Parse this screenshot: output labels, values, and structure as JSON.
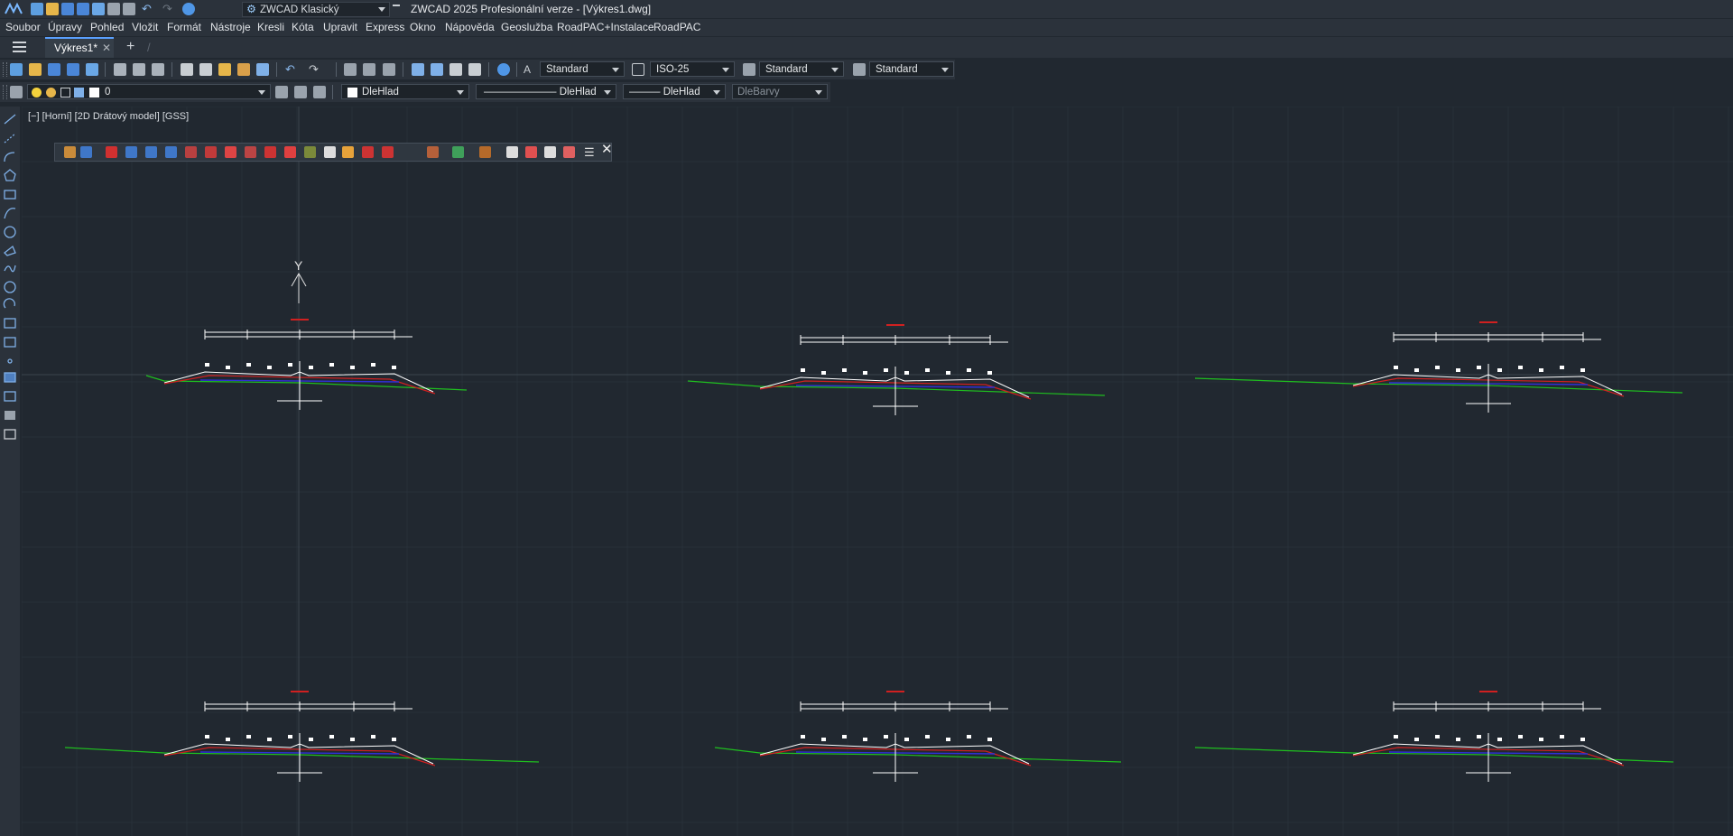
{
  "app": {
    "title": "ZWCAD 2025 Profesionální verze - [Výkres1.dwg]",
    "workspace": "ZWCAD Klasický",
    "gear_icon": "gear-icon"
  },
  "menu": [
    "Soubor",
    "Úpravy",
    "Pohled",
    "Vložit",
    "Formát",
    "Nástroje",
    "Kresli",
    "Kóta",
    "Upravit",
    "Express",
    "Okno",
    "Nápověda",
    "Geoslužba",
    "RoadPAC+Instalace",
    "RoadPAC"
  ],
  "tabs": {
    "active": "Výkres1*",
    "close_glyph": "✕",
    "add_glyph": "+",
    "sep_glyph": "/"
  },
  "styles": {
    "text_style": "Standard",
    "dim_style": "ISO-25",
    "table_style": "Standard",
    "multileader_style": "Standard"
  },
  "layers": {
    "current_layer": "0",
    "color": "DleHlad",
    "linetype": "———————  DleHlad",
    "lineweight": "———  DleHlad",
    "plotstyle": "DleBarvy"
  },
  "viewport": {
    "label": "[−] [Horní] [2D Drátový model] [GSS]",
    "ucs_axis": "Y"
  },
  "colors": {
    "background": "#212830",
    "ground_line": "#1fbf1f",
    "red_line": "#d02020",
    "blue_line": "#3030d8",
    "white_line": "#ffffff",
    "accent": "#5aa0ff"
  },
  "floating_toolbar": {
    "close_glyph": "✕"
  }
}
